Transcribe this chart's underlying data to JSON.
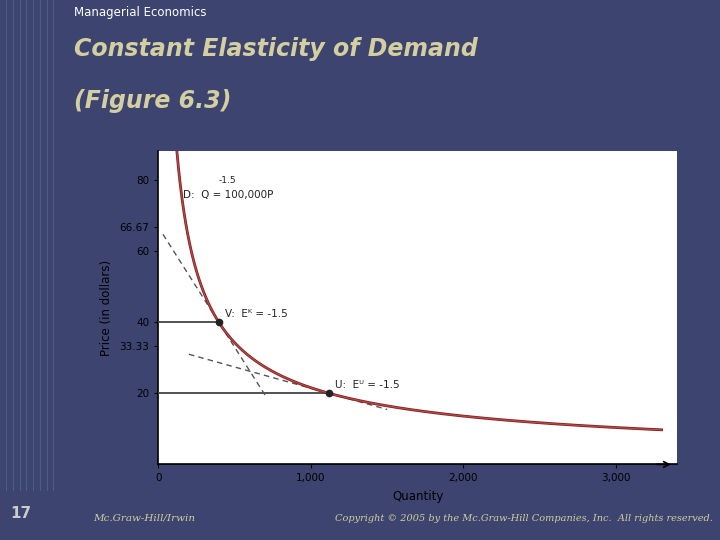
{
  "title_small": "Managerial Economics",
  "title_large1": "Constant Elasticity of Demand",
  "title_large2": "(Figure 6.3)",
  "xlabel": "Quantity",
  "ylabel": "Price (in dollars)",
  "header_bg": "#3d4470",
  "header_title_color": "#d4cfa0",
  "title_small_color": "#ffffff",
  "footer_bg": "#3d4470",
  "footer_left": "Mc.Graw-Hill/Irwin",
  "footer_right": "Copyright © 2005 by the Mc.Graw-Hill Companies, Inc.  All rights reserved.",
  "slide_number": "17",
  "curve_label": "D:  Q = 100,000P",
  "curve_exp": "-1.5",
  "label_V": "V:  Eᴷ = -1.5",
  "label_U": "U:  Eᵁ = -1.5",
  "curve_color": "#8b1a1a",
  "curve_color2": "#c07070",
  "dashed_color": "#555555",
  "hline_color": "#444444",
  "dot_color": "#222222",
  "ylim": [
    0,
    88
  ],
  "xlim": [
    0,
    3400
  ],
  "xticks": [
    0,
    1000,
    2000,
    3000
  ],
  "yticks": [
    20,
    40,
    60,
    80
  ],
  "yticks_extra": [
    33.33,
    66.67
  ],
  "chart_bg": "#f8f8f8",
  "left_strip_color": "#9aacbb"
}
